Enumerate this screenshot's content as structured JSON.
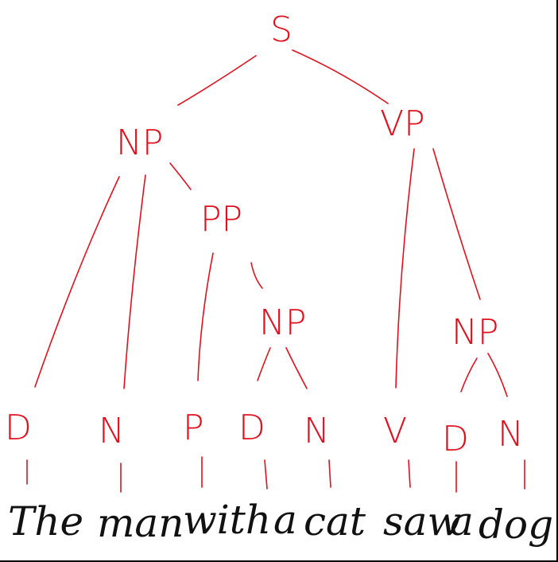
{
  "diagram": {
    "type": "parse-tree",
    "colors": {
      "tree": "#e0111f",
      "words": "#111111"
    },
    "labels": {
      "root": "S",
      "np1": "NP",
      "vp": "VP",
      "pp": "PP",
      "np2": "NP",
      "np3": "NP",
      "d1": "D",
      "n1": "N",
      "p1": "P",
      "d2": "D",
      "n2": "N",
      "v1": "V",
      "d3": "D",
      "n3": "N"
    },
    "sentence": {
      "w1": "The",
      "w2": "man",
      "w3": "with",
      "w4": "a",
      "w5": "cat",
      "w6": "saw",
      "w7": "a",
      "w8": "dog"
    }
  }
}
